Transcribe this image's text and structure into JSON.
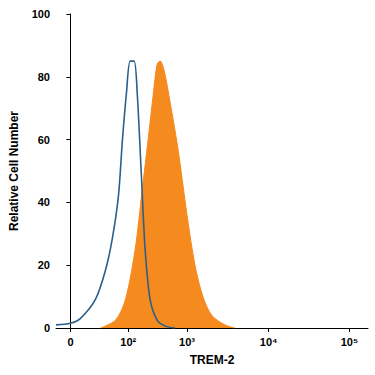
{
  "chart_data": {
    "type": "line",
    "xlabel": "TREM-2",
    "ylabel": "Relative Cell Number",
    "xlim": [
      -25,
      170000
    ],
    "xticks": [
      {
        "value": 0,
        "label": "0"
      },
      {
        "value": 100,
        "label": "10²"
      },
      {
        "value": 1000,
        "label": "10³"
      },
      {
        "value": 10000,
        "label": "10⁴"
      },
      {
        "value": 100000,
        "label": "10⁵"
      }
    ],
    "ylim": [
      0,
      100
    ],
    "yticks": [
      0,
      20,
      40,
      60,
      80,
      100
    ],
    "grid": false,
    "series": [
      {
        "type": "area",
        "color": "#f58a1f",
        "x": [
          52,
          78,
          95,
          131,
          173,
          218,
          265,
          310,
          349,
          408,
          515,
          703,
          1000,
          1252,
          1566,
          2016,
          2906,
          3848
        ],
        "values": [
          0,
          2.5,
          9,
          25,
          44,
          60,
          74,
          84,
          85,
          82,
          72,
          57,
          36,
          20,
          10,
          4,
          1,
          0
        ]
      },
      {
        "type": "line",
        "color": "#2b5f8c",
        "x": [
          -25,
          0,
          17,
          43,
          60,
          72,
          83,
          90,
          97,
          108,
          126,
          142,
          166,
          194,
          236,
          310,
          424,
          627
        ],
        "values": [
          1,
          1.5,
          3,
          9,
          18,
          28,
          42,
          60,
          75,
          85,
          85,
          75,
          50,
          25,
          9,
          2.5,
          0.6,
          0
        ]
      }
    ]
  }
}
